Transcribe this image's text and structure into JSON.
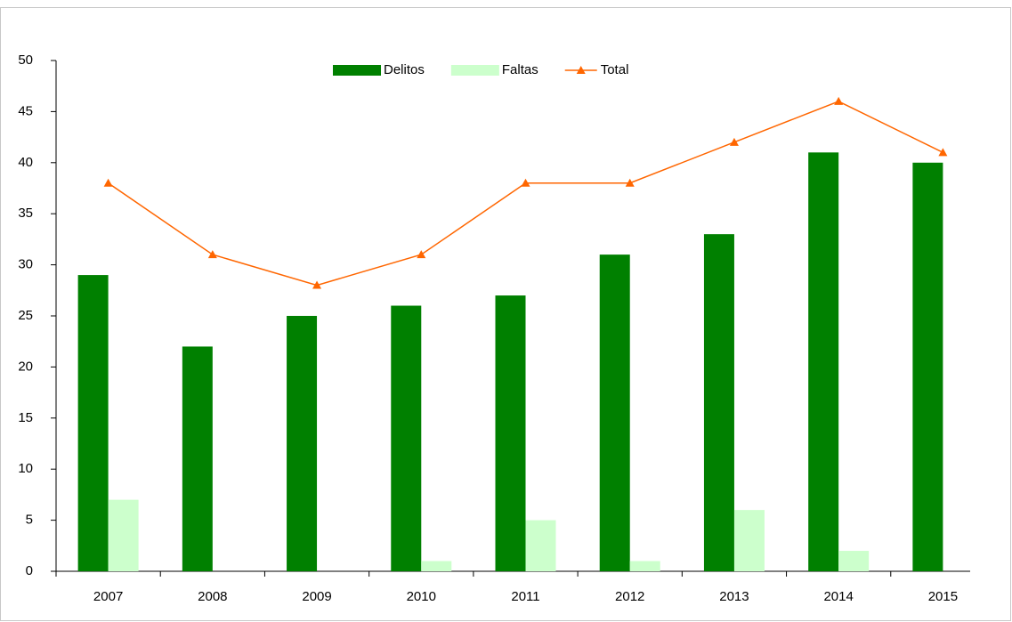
{
  "chart_data": {
    "type": "bar",
    "categories": [
      "2007",
      "2008",
      "2009",
      "2010",
      "2011",
      "2012",
      "2013",
      "2014",
      "2015"
    ],
    "series": [
      {
        "name": "Delitos",
        "color": "#008000",
        "values": [
          29,
          22,
          25,
          26,
          27,
          31,
          33,
          41,
          40
        ]
      },
      {
        "name": "Faltas",
        "color": "#ccffcc",
        "values": [
          7,
          0,
          0,
          1,
          5,
          1,
          6,
          2,
          0
        ]
      },
      {
        "name": "Total",
        "color": "#ff6600",
        "type": "line",
        "values": [
          38,
          31,
          28,
          31,
          38,
          38,
          42,
          46,
          41
        ]
      }
    ],
    "ylim": [
      0,
      50
    ],
    "yticks": [
      0,
      5,
      10,
      15,
      20,
      25,
      30,
      35,
      40,
      45,
      50
    ],
    "legend": "top"
  }
}
